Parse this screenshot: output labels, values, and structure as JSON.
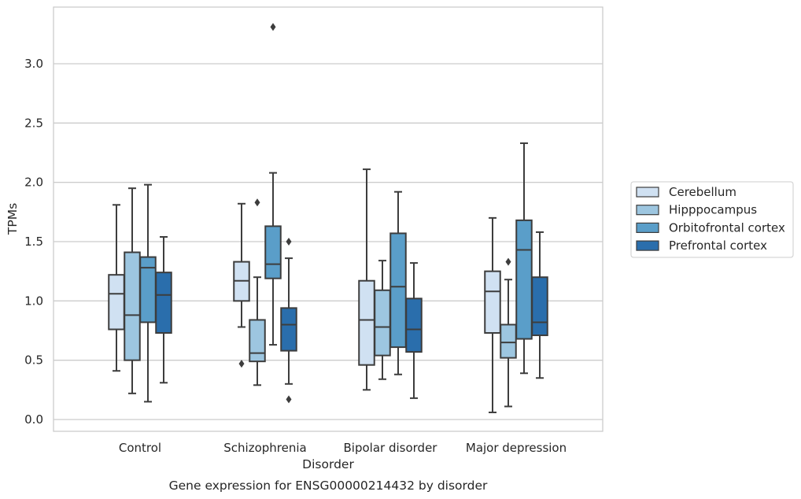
{
  "chart_data": {
    "type": "box",
    "title": "Gene expression for ENSG00000214432 by disorder",
    "xlabel": "Disorder",
    "ylabel": "TPMs",
    "ylim": [
      -0.1,
      3.5
    ],
    "yticks": [
      "0.0",
      "0.5",
      "1.0",
      "1.5",
      "2.0",
      "2.5",
      "3.0"
    ],
    "ytick_values": [
      0.0,
      0.5,
      1.0,
      1.5,
      2.0,
      2.5,
      3.0
    ],
    "grid": "horizontal",
    "legend_position": "right",
    "categories": [
      "Control",
      "Schizophrenia",
      "Bipolar disorder",
      "Major depression"
    ],
    "series": [
      {
        "name": "Cerebellum",
        "color": "#d0e1f2",
        "boxes": [
          {
            "whisker_low": 0.41,
            "q1": 0.76,
            "median": 1.06,
            "q3": 1.22,
            "whisker_high": 1.81,
            "outliers": []
          },
          {
            "whisker_low": 0.78,
            "q1": 1.0,
            "median": 1.17,
            "q3": 1.33,
            "whisker_high": 1.82,
            "outliers": [
              0.47
            ]
          },
          {
            "whisker_low": 0.25,
            "q1": 0.46,
            "median": 0.84,
            "q3": 1.17,
            "whisker_high": 2.11,
            "outliers": []
          },
          {
            "whisker_low": 0.06,
            "q1": 0.73,
            "median": 1.08,
            "q3": 1.25,
            "whisker_high": 1.7,
            "outliers": []
          }
        ]
      },
      {
        "name": "Hipppocampus",
        "color": "#9dc6e0",
        "boxes": [
          {
            "whisker_low": 0.22,
            "q1": 0.5,
            "median": 0.88,
            "q3": 1.41,
            "whisker_high": 1.95,
            "outliers": []
          },
          {
            "whisker_low": 0.29,
            "q1": 0.49,
            "median": 0.56,
            "q3": 0.84,
            "whisker_high": 1.2,
            "outliers": [
              1.83
            ]
          },
          {
            "whisker_low": 0.34,
            "q1": 0.54,
            "median": 0.78,
            "q3": 1.09,
            "whisker_high": 1.34,
            "outliers": []
          },
          {
            "whisker_low": 0.11,
            "q1": 0.52,
            "median": 0.65,
            "q3": 0.8,
            "whisker_high": 1.18,
            "outliers": [
              1.33
            ]
          }
        ]
      },
      {
        "name": "Orbitofrontal cortex",
        "color": "#5a9ec9",
        "boxes": [
          {
            "whisker_low": 0.15,
            "q1": 0.82,
            "median": 1.28,
            "q3": 1.37,
            "whisker_high": 1.98,
            "outliers": []
          },
          {
            "whisker_low": 0.63,
            "q1": 1.19,
            "median": 1.31,
            "q3": 1.63,
            "whisker_high": 2.08,
            "outliers": [
              3.31
            ]
          },
          {
            "whisker_low": 0.38,
            "q1": 0.61,
            "median": 1.12,
            "q3": 1.57,
            "whisker_high": 1.92,
            "outliers": []
          },
          {
            "whisker_low": 0.39,
            "q1": 0.68,
            "median": 1.43,
            "q3": 1.68,
            "whisker_high": 2.33,
            "outliers": []
          }
        ]
      },
      {
        "name": "Prefrontal cortex",
        "color": "#2a6eac",
        "boxes": [
          {
            "whisker_low": 0.31,
            "q1": 0.73,
            "median": 1.05,
            "q3": 1.24,
            "whisker_high": 1.54,
            "outliers": []
          },
          {
            "whisker_low": 0.3,
            "q1": 0.58,
            "median": 0.8,
            "q3": 0.94,
            "whisker_high": 1.36,
            "outliers": [
              1.5,
              0.17
            ]
          },
          {
            "whisker_low": 0.18,
            "q1": 0.57,
            "median": 0.76,
            "q3": 1.02,
            "whisker_high": 1.32,
            "outliers": []
          },
          {
            "whisker_low": 0.35,
            "q1": 0.71,
            "median": 0.82,
            "q3": 1.2,
            "whisker_high": 1.58,
            "outliers": []
          }
        ]
      }
    ]
  }
}
